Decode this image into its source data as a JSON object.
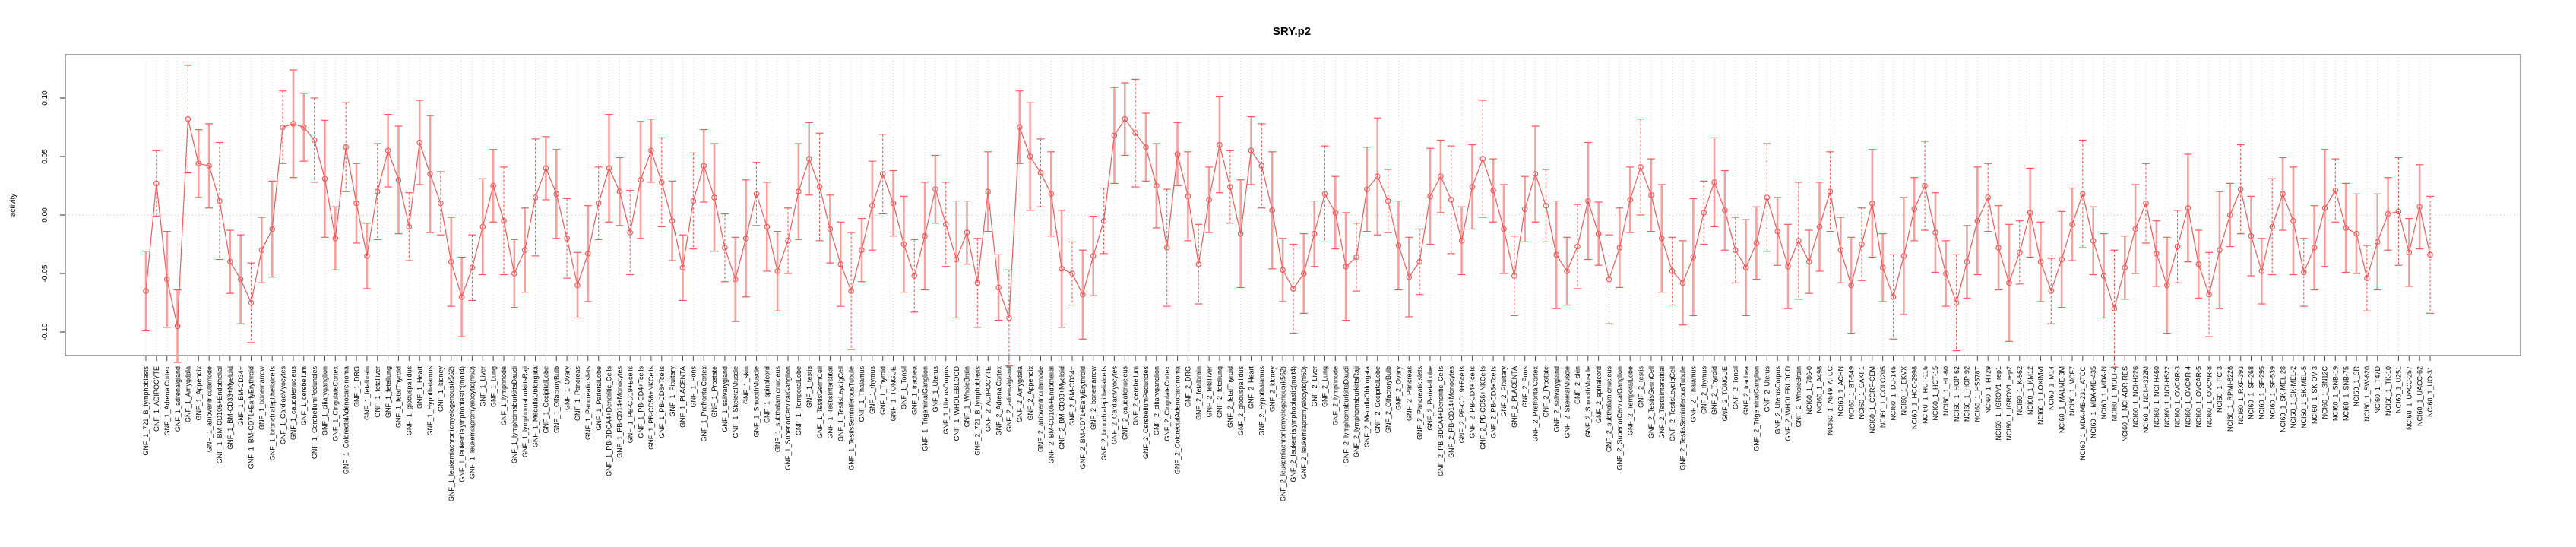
{
  "figure": {
    "title": "SRY.p2"
  },
  "chart_data": {
    "type": "line",
    "title": "SRY.p2",
    "xlabel": "",
    "ylabel": "activity",
    "ylim": [
      -0.125,
      0.135
    ],
    "yticks": [
      0.1,
      0.05,
      0.0,
      -0.05,
      -0.1
    ],
    "ytick_labels": [
      "0.10",
      "0.05",
      "0.00",
      "-0.05",
      "-0.10"
    ],
    "grid": "vertical dotted gridline at every category; dotted horizontal line at 0",
    "legend_position": "none",
    "series_name": "motif activity with error bars",
    "series_color": "#f25a5a",
    "errorbar_color": "#f8a0a0",
    "point_style": "open-circle",
    "groups": [
      {
        "prefix": "GNF_1_",
        "items": [
          "721_B_lymphoblasts",
          "ADIPOCYTE",
          "AdrenalCortex",
          "adrenalgland",
          "Amygdala",
          "Appendix",
          "atrioventricularnode",
          "BM-CD105+Endothelial",
          "BM-CD33+Myeloid",
          "BM-CD34+",
          "BM-CD71+EarlyErythroid",
          "bonemarrow",
          "bronchialepithelialcells",
          "CardiacMyocytes",
          "caudatenucleus",
          "cerebellum",
          "CerebellumPeduncles",
          "ciliaryganglion",
          "CingulateCortex",
          "ColorectalAdenocarcinoma",
          "DRG",
          "fetalbrain",
          "fetalliver",
          "fetallung",
          "fetalThyroid",
          "globuspallidus",
          "Heart",
          "Hypothalamus",
          "kidney",
          "leukemiachronicmyelogenous(k562)",
          "leukemialymphoblastic(molt4)",
          "leukemiapromyelocytic(hl60)",
          "Liver",
          "Lung",
          "lymphnode",
          "lymphomaburkittsDaudi",
          "lymphomaburkittsRaji",
          "MedullaOblongata",
          "OccipitalLobe",
          "OlfactoryBulb",
          "Ovary",
          "Pancreas",
          "Pancreaticislets",
          "ParietalLobe",
          "PB-BDCA4+Dendritic_Cells",
          "PB-CD14+Monocytes",
          "PB-CD19+Bcells",
          "PB-CD4+Tcells",
          "PB-CD56+NKCells",
          "PB-CD8+Tcells",
          "Pituitary",
          "PLACENTA",
          "Pons",
          "PrefrontalCortex",
          "Prostate",
          "salivarygland",
          "SkeletalMuscle",
          "skin",
          "SmoothMuscle",
          "spinalcord",
          "subthalamicnucleus",
          "SuperiorCervicalGanglion",
          "TemporalLobe",
          "testis",
          "TestisGermCell",
          "TestisInterstitial",
          "TestisLeydigCell",
          "TestisSeminiferousTubule",
          "Thalamus",
          "thymus",
          "Thyroid",
          "TONGUE",
          "Tonsil",
          "trachea",
          "TrigeminalGanglion",
          "Uterus",
          "UterusCorpus",
          "WHOLEBLOOD",
          "WholeBrain"
        ]
      },
      {
        "prefix": "GNF_2_",
        "items_ref": "GNF_1_"
      },
      {
        "prefix": "NCI60_1_",
        "items": [
          "786-0",
          "A498",
          "A549_ATCC",
          "ACHN",
          "BT-549",
          "CAKI-1",
          "CCRF-CEM",
          "COLO205",
          "DU-145",
          "EKVX",
          "HCC-2998",
          "HCT-116",
          "HCT-15",
          "HL-60",
          "HOP-62",
          "HOP-92",
          "HS578T",
          "HT29",
          "IGROV1_rep1",
          "IGROV1_rep2",
          "K-562",
          "KM12",
          "LOXIMVI",
          "M14",
          "MALME-3M",
          "MCF7",
          "MDA-MB-231_ATCC",
          "MDA-MB-435",
          "MDA-N",
          "MOLT-4",
          "NCI-ADR-RES",
          "NCI-H226",
          "NCI-H322M",
          "NCI-H460",
          "NCI-H522",
          "OVCAR-3",
          "OVCAR-4",
          "OVCAR-5",
          "OVCAR-8",
          "PC-3",
          "RPMI-8226",
          "RXF-393",
          "SF-268",
          "SF-295",
          "SF-539",
          "SK-MEL-28",
          "SK-MEL-2",
          "SK-MEL-5",
          "SK-OV-3",
          "SN12C",
          "SNB-19",
          "SNB-75",
          "SR",
          "SW-620",
          "T47D",
          "TK-10",
          "U251",
          "UACC-257",
          "UACC-62",
          "UO-31"
        ]
      }
    ],
    "values": [
      -0.065,
      0.027,
      -0.055,
      -0.095,
      0.082,
      0.044,
      0.042,
      0.012,
      -0.04,
      -0.055,
      -0.075,
      -0.03,
      -0.012,
      0.075,
      0.078,
      0.075,
      0.064,
      0.031,
      -0.02,
      0.058,
      0.01,
      -0.035,
      0.02,
      0.055,
      0.03,
      -0.01,
      0.062,
      0.035,
      0.01,
      -0.04,
      -0.07,
      -0.045,
      -0.01,
      0.025,
      -0.005,
      -0.05,
      -0.03,
      0.015,
      0.04,
      0.018,
      -0.02,
      -0.06,
      -0.033,
      0.01,
      0.04,
      0.02,
      -0.015,
      0.03,
      0.055,
      0.028,
      -0.005,
      -0.045,
      0.012,
      0.042,
      0.015,
      -0.028,
      -0.055,
      -0.02,
      0.018,
      -0.01,
      -0.048,
      -0.022,
      0.02,
      0.048,
      0.024,
      -0.012,
      -0.042,
      -0.065,
      -0.03,
      0.008,
      0.035,
      0.01,
      -0.025,
      -0.052,
      -0.018,
      0.022,
      -0.008,
      -0.038,
      -0.015,
      -0.058,
      0.02,
      -0.062,
      -0.088,
      0.075,
      0.05,
      0.036,
      0.018,
      -0.046,
      -0.05,
      -0.068,
      -0.035,
      -0.005,
      0.068,
      0.082,
      0.07,
      0.058,
      0.025,
      -0.028,
      0.052,
      0.016,
      -0.042,
      0.013,
      0.06,
      0.024,
      -0.016,
      0.055,
      0.042,
      0.004,
      -0.047,
      -0.063,
      -0.05,
      -0.016,
      0.018,
      0.002,
      -0.044,
      -0.036,
      0.022,
      0.033,
      0.012,
      -0.026,
      -0.053,
      -0.04,
      0.016,
      0.033,
      0.013,
      -0.022,
      0.024,
      0.048,
      0.021,
      -0.012,
      -0.052,
      0.005,
      0.035,
      0.008,
      -0.034,
      -0.048,
      -0.027,
      0.012,
      -0.016,
      -0.055,
      -0.028,
      0.013,
      0.041,
      0.017,
      -0.02,
      -0.048,
      -0.058,
      -0.036,
      0.002,
      0.028,
      0.004,
      -0.03,
      -0.045,
      -0.024,
      0.015,
      -0.014,
      -0.044,
      -0.022,
      -0.04,
      -0.01,
      0.02,
      -0.03,
      -0.06,
      -0.025,
      0.01,
      -0.045,
      -0.07,
      -0.035,
      0.005,
      0.025,
      -0.015,
      -0.05,
      -0.075,
      -0.04,
      -0.005,
      0.015,
      -0.028,
      -0.058,
      -0.032,
      0.002,
      -0.04,
      -0.065,
      -0.038,
      -0.008,
      0.018,
      -0.022,
      -0.052,
      -0.08,
      -0.045,
      -0.012,
      0.01,
      -0.033,
      -0.06,
      -0.027,
      0.006,
      -0.042,
      -0.068,
      -0.03,
      0.0,
      0.022,
      -0.018,
      -0.048,
      -0.01,
      0.018,
      -0.005,
      -0.049,
      -0.028,
      0.006,
      0.021,
      -0.011,
      -0.016,
      -0.054,
      -0.023,
      0.001,
      0.003,
      -0.032,
      0.007,
      -0.034
    ],
    "errors": [
      0.034,
      0.028,
      0.041,
      0.031,
      0.046,
      0.029,
      0.036,
      0.05,
      0.027,
      0.038,
      0.034,
      0.028,
      0.041,
      0.031,
      0.046,
      0.029,
      0.036,
      0.05,
      0.027,
      0.038,
      0.034,
      0.028,
      0.041,
      0.031,
      0.046,
      0.029,
      0.036,
      0.05,
      0.027,
      0.038,
      0.034,
      0.028,
      0.041,
      0.031,
      0.046,
      0.029,
      0.036,
      0.05,
      0.027,
      0.038,
      0.034,
      0.028,
      0.041,
      0.031,
      0.046,
      0.029,
      0.036,
      0.05,
      0.027,
      0.038,
      0.034,
      0.028,
      0.041,
      0.031,
      0.046,
      0.029,
      0.036,
      0.05,
      0.027,
      0.038,
      0.034,
      0.028,
      0.041,
      0.031,
      0.046,
      0.029,
      0.036,
      0.05,
      0.027,
      0.038,
      0.034,
      0.028,
      0.041,
      0.031,
      0.046,
      0.029,
      0.036,
      0.05,
      0.027,
      0.038,
      0.034,
      0.028,
      0.041,
      0.031,
      0.046,
      0.029,
      0.036,
      0.05,
      0.027,
      0.038,
      0.034,
      0.028,
      0.041,
      0.031,
      0.046,
      0.029,
      0.036,
      0.05,
      0.027,
      0.038,
      0.034,
      0.028,
      0.041,
      0.031,
      0.046,
      0.029,
      0.036,
      0.05,
      0.027,
      0.038,
      0.034,
      0.028,
      0.041,
      0.031,
      0.046,
      0.029,
      0.036,
      0.05,
      0.027,
      0.038,
      0.034,
      0.028,
      0.041,
      0.031,
      0.046,
      0.029,
      0.036,
      0.05,
      0.027,
      0.038,
      0.034,
      0.028,
      0.041,
      0.031,
      0.046,
      0.029,
      0.036,
      0.05,
      0.027,
      0.038,
      0.034,
      0.028,
      0.041,
      0.031,
      0.046,
      0.029,
      0.036,
      0.05,
      0.027,
      0.038,
      0.034,
      0.028,
      0.041,
      0.031,
      0.046,
      0.029,
      0.036,
      0.05,
      0.027,
      0.038,
      0.034,
      0.028,
      0.041,
      0.031,
      0.046,
      0.029,
      0.036,
      0.05,
      0.027,
      0.038,
      0.034,
      0.028,
      0.041,
      0.031,
      0.046,
      0.029,
      0.036,
      0.05,
      0.027,
      0.038,
      0.034,
      0.028,
      0.041,
      0.031,
      0.046,
      0.029,
      0.036,
      0.05,
      0.027,
      0.038,
      0.034,
      0.028,
      0.041,
      0.031,
      0.046,
      0.029,
      0.036,
      0.05,
      0.027,
      0.038,
      0.034,
      0.028,
      0.041,
      0.031,
      0.046,
      0.029,
      0.036,
      0.05,
      0.027,
      0.038,
      0.034,
      0.028,
      0.041,
      0.031,
      0.046,
      0.029,
      0.036,
      0.05
    ]
  }
}
